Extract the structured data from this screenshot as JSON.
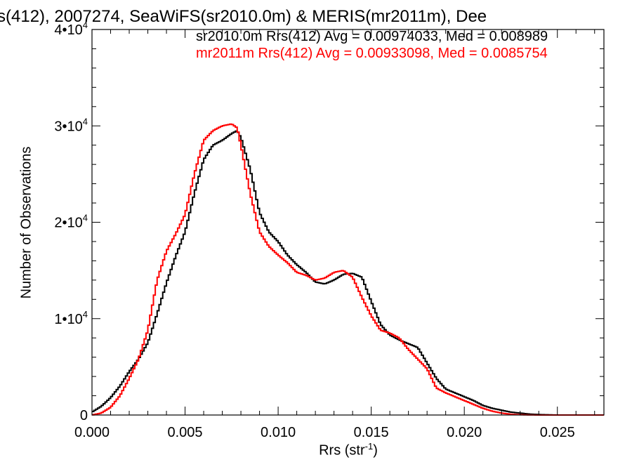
{
  "chart_data": {
    "type": "line",
    "title": "s(412), 2007274, SeaWiFS(sr2010.0m) & MERIS(mr2011m), Dee",
    "xlabel_prefix": "Rrs (str",
    "xlabel_sup": "-1",
    "xlabel_suffix": ")",
    "ylabel": "Number of Observations",
    "xlim": [
      0.0,
      0.0275
    ],
    "ylim": [
      0,
      40000
    ],
    "xticks": [
      0.0,
      0.005,
      0.01,
      0.015,
      0.02,
      0.025
    ],
    "xtick_labels": [
      "0.000",
      "0.005",
      "0.010",
      "0.015",
      "0.020",
      "0.025"
    ],
    "yticks": [
      0,
      10000,
      20000,
      30000,
      40000
    ],
    "ytick_labels": [
      {
        "base": "0",
        "exp": ""
      },
      {
        "base": "1•10",
        "exp": "4"
      },
      {
        "base": "2•10",
        "exp": "4"
      },
      {
        "base": "3•10",
        "exp": "4"
      },
      {
        "base": "4•10",
        "exp": "4"
      }
    ],
    "legend": [
      {
        "text": "sr2010.0m Rrs(412) Avg = 0.00974033, Med = 0.008989",
        "color": "#000000"
      },
      {
        "text": "mr2011m Rrs(412) Avg = 0.00933098, Med = 0.0085754",
        "color": "#ff0000"
      }
    ],
    "legend_position": "top-right",
    "series": [
      {
        "name": "sr2010.0m",
        "color": "#000000",
        "x": [
          0.0,
          0.0005,
          0.001,
          0.0015,
          0.002,
          0.0025,
          0.003,
          0.0035,
          0.004,
          0.0045,
          0.005,
          0.0055,
          0.006,
          0.0065,
          0.007,
          0.0075,
          0.0078,
          0.008,
          0.0085,
          0.009,
          0.0095,
          0.01,
          0.0105,
          0.011,
          0.0115,
          0.012,
          0.0125,
          0.013,
          0.0135,
          0.014,
          0.0145,
          0.015,
          0.0155,
          0.016,
          0.0165,
          0.017,
          0.0175,
          0.018,
          0.0185,
          0.019,
          0.0195,
          0.02,
          0.0205,
          0.021,
          0.0215,
          0.022,
          0.0225,
          0.023,
          0.0235,
          0.024,
          0.0245,
          0.025,
          0.0275
        ],
        "y": [
          300,
          900,
          1800,
          3000,
          4500,
          5800,
          7500,
          10500,
          13700,
          16500,
          19000,
          23000,
          26500,
          28000,
          28500,
          29200,
          29500,
          28800,
          25500,
          21000,
          19000,
          18000,
          16600,
          15600,
          14800,
          13800,
          13600,
          14000,
          14600,
          14700,
          14300,
          11800,
          9400,
          8300,
          7800,
          7400,
          7000,
          5400,
          3800,
          2700,
          2300,
          1900,
          1500,
          1000,
          700,
          500,
          300,
          200,
          100,
          50,
          20,
          0,
          0
        ]
      },
      {
        "name": "mr2011m",
        "color": "#ff0000",
        "x": [
          0.0,
          0.0005,
          0.001,
          0.0015,
          0.002,
          0.0025,
          0.003,
          0.0035,
          0.004,
          0.0045,
          0.005,
          0.0055,
          0.006,
          0.0065,
          0.007,
          0.0075,
          0.0078,
          0.008,
          0.0085,
          0.009,
          0.0095,
          0.01,
          0.0105,
          0.011,
          0.0115,
          0.012,
          0.0125,
          0.013,
          0.0135,
          0.014,
          0.0145,
          0.015,
          0.0155,
          0.016,
          0.0165,
          0.017,
          0.0175,
          0.018,
          0.0185,
          0.019,
          0.0195,
          0.02,
          0.0205,
          0.021,
          0.0215,
          0.022,
          0.0225,
          0.023,
          0.0235,
          0.024,
          0.0245,
          0.025,
          0.0275
        ],
        "y": [
          0,
          200,
          800,
          2000,
          3800,
          5800,
          8800,
          14000,
          17000,
          18800,
          20800,
          25000,
          28500,
          29500,
          30000,
          30200,
          29800,
          28000,
          23000,
          19000,
          17500,
          16600,
          15800,
          14800,
          14500,
          14000,
          14200,
          14800,
          15000,
          14300,
          12200,
          10300,
          8800,
          8500,
          8000,
          6800,
          5800,
          4800,
          2800,
          2300,
          1900,
          1500,
          1100,
          700,
          400,
          200,
          80,
          30,
          10,
          0,
          0,
          0,
          0
        ]
      }
    ]
  }
}
